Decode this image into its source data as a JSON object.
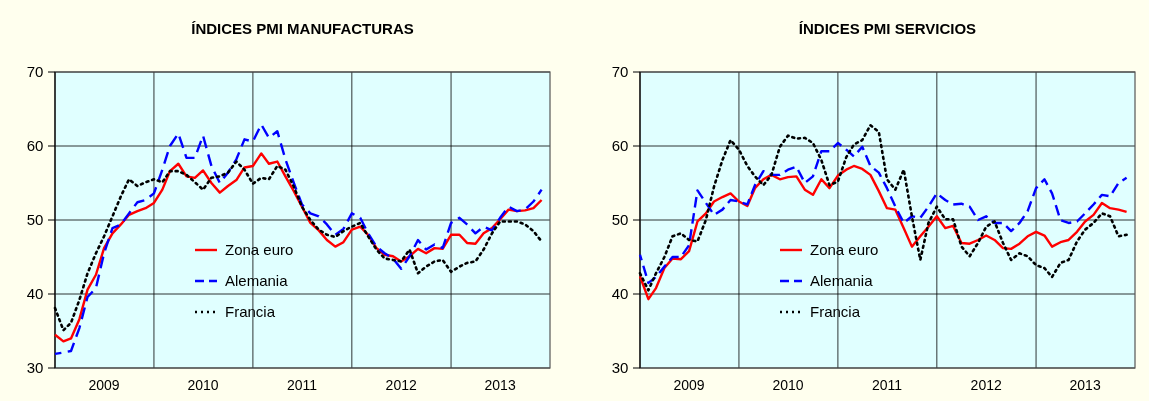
{
  "chart_data": [
    {
      "type": "line",
      "title": "ÍNDICES PMI MANUFACTURAS",
      "x": [
        "2009-01",
        "2009-02",
        "2009-03",
        "2009-04",
        "2009-05",
        "2009-06",
        "2009-07",
        "2009-08",
        "2009-09",
        "2009-10",
        "2009-11",
        "2009-12",
        "2010-01",
        "2010-02",
        "2010-03",
        "2010-04",
        "2010-05",
        "2010-06",
        "2010-07",
        "2010-08",
        "2010-09",
        "2010-10",
        "2010-11",
        "2010-12",
        "2011-01",
        "2011-02",
        "2011-03",
        "2011-04",
        "2011-05",
        "2011-06",
        "2011-07",
        "2011-08",
        "2011-09",
        "2011-10",
        "2011-11",
        "2011-12",
        "2012-01",
        "2012-02",
        "2012-03",
        "2012-04",
        "2012-05",
        "2012-06",
        "2012-07",
        "2012-08",
        "2012-09",
        "2012-10",
        "2012-11",
        "2012-12",
        "2013-01",
        "2013-02",
        "2013-03",
        "2013-04",
        "2013-05",
        "2013-06",
        "2013-07",
        "2013-08",
        "2013-09",
        "2013-10",
        "2013-11",
        "2013-12"
      ],
      "series": [
        {
          "name": "Zona euro",
          "color": "#ff0000",
          "line_style": "solid",
          "values": [
            34.5,
            33.6,
            34,
            36.6,
            40.6,
            42.6,
            46.2,
            48.2,
            49.4,
            50.7,
            51.2,
            51.6,
            52.3,
            54.1,
            56.6,
            57.6,
            55.9,
            55.7,
            56.7,
            55,
            53.7,
            54.6,
            55.4,
            57.1,
            57.3,
            59,
            57.6,
            57.9,
            55.9,
            53.9,
            51.8,
            49.6,
            48.6,
            47.3,
            46.4,
            47,
            48.7,
            49.1,
            48,
            46.2,
            45.3,
            45.1,
            44.4,
            45.1,
            46.1,
            45.5,
            46.2,
            46.1,
            48,
            48,
            46.9,
            46.8,
            48.2,
            48.9,
            50.1,
            51.4,
            51.2,
            51.3,
            51.6,
            52.7
          ]
        },
        {
          "name": "Alemania",
          "color": "#0000ff",
          "line_style": "dashed",
          "values": [
            31.9,
            32.1,
            32.3,
            35.4,
            39.6,
            40.8,
            45.5,
            48.9,
            49.4,
            50.9,
            52.4,
            52.7,
            53.6,
            56.8,
            60,
            61.7,
            58.4,
            58.4,
            61.4,
            57.3,
            55,
            56.4,
            58.2,
            60.9,
            60.6,
            62.9,
            61.1,
            62,
            58.2,
            55,
            52.1,
            50.9,
            50.5,
            49.4,
            48,
            48.8,
            50.9,
            50.3,
            48.2,
            46.4,
            45.5,
            44.8,
            43.4,
            45.1,
            47.3,
            46,
            46.7,
            46.2,
            49.6,
            50.3,
            49.4,
            48.2,
            49.1,
            48.6,
            50.3,
            51.8,
            51.2,
            51.4,
            52.5,
            54.1
          ]
        },
        {
          "name": "Francia",
          "color": "#000000",
          "line_style": "dotted",
          "values": [
            38.1,
            35.1,
            36.1,
            39.2,
            42.8,
            45.5,
            47.8,
            50.5,
            53.2,
            55.5,
            54.6,
            55.1,
            55.5,
            55.1,
            56.6,
            56.6,
            56.1,
            55.1,
            54.1,
            55.7,
            55.9,
            56.4,
            57.9,
            56.8,
            54.9,
            55.7,
            55.5,
            57.3,
            56.8,
            54.5,
            51.8,
            50,
            48.7,
            48,
            47.7,
            48.5,
            49.1,
            49.6,
            47.8,
            46,
            44.8,
            44.6,
            44.4,
            46,
            42.8,
            43.7,
            44.4,
            44.6,
            43,
            43.7,
            44.2,
            44.4,
            46,
            48.2,
            49.8,
            49.8,
            49.8,
            49.4,
            48.5,
            47.1
          ]
        }
      ],
      "xlim": [
        "2009-01",
        "2014-01"
      ],
      "xticks": [
        {
          "value": "2009-07",
          "label": "2009"
        },
        {
          "value": "2010-07",
          "label": "2010"
        },
        {
          "value": "2011-07",
          "label": "2011"
        },
        {
          "value": "2012-07",
          "label": "2012"
        },
        {
          "value": "2013-07",
          "label": "2013"
        },
        {
          "value": "2010-01",
          "label": null
        },
        {
          "value": "2011-01",
          "label": null
        },
        {
          "value": "2012-01",
          "label": null
        },
        {
          "value": "2013-01",
          "label": null
        }
      ],
      "ylim": [
        30,
        70
      ],
      "yticks": [
        30,
        40,
        50,
        60,
        70
      ],
      "grid": true,
      "legend": "center"
    },
    {
      "type": "line",
      "title": "ÍNDICES PMI SERVICIOS",
      "x": [
        "2009-01",
        "2009-02",
        "2009-03",
        "2009-04",
        "2009-05",
        "2009-06",
        "2009-07",
        "2009-08",
        "2009-09",
        "2009-10",
        "2009-11",
        "2009-12",
        "2010-01",
        "2010-02",
        "2010-03",
        "2010-04",
        "2010-05",
        "2010-06",
        "2010-07",
        "2010-08",
        "2010-09",
        "2010-10",
        "2010-11",
        "2010-12",
        "2011-01",
        "2011-02",
        "2011-03",
        "2011-04",
        "2011-05",
        "2011-06",
        "2011-07",
        "2011-08",
        "2011-09",
        "2011-10",
        "2011-11",
        "2011-12",
        "2012-01",
        "2012-02",
        "2012-03",
        "2012-04",
        "2012-05",
        "2012-06",
        "2012-07",
        "2012-08",
        "2012-09",
        "2012-10",
        "2012-11",
        "2012-12",
        "2013-01",
        "2013-02",
        "2013-03",
        "2013-04",
        "2013-05",
        "2013-06",
        "2013-07",
        "2013-08",
        "2013-09",
        "2013-10",
        "2013-11",
        "2013-12"
      ],
      "series": [
        {
          "name": "Zona euro",
          "color": "#ff0000",
          "line_style": "solid",
          "values": [
            42.4,
            39.3,
            40.8,
            43.5,
            44.8,
            44.7,
            45.8,
            49.8,
            50.9,
            52.5,
            53.1,
            53.6,
            52.5,
            51.9,
            54.3,
            55.5,
            56.1,
            55.5,
            55.8,
            55.9,
            54.1,
            53.4,
            55.5,
            54.3,
            56,
            56.8,
            57.3,
            56.9,
            56.1,
            53.9,
            51.6,
            51.4,
            48.9,
            46.4,
            47.8,
            49.1,
            50.5,
            48.9,
            49.2,
            46.9,
            46.8,
            47.3,
            47.9,
            47.3,
            46.2,
            46.1,
            46.8,
            47.8,
            48.4,
            47.9,
            46.4,
            47,
            47.3,
            48.4,
            49.8,
            50.7,
            52.3,
            51.6,
            51.4,
            51.1
          ]
        },
        {
          "name": "Alemania",
          "color": "#0000ff",
          "line_style": "dashed",
          "values": [
            45.3,
            41.5,
            42.3,
            43.7,
            45,
            45,
            46.6,
            54,
            52.3,
            50.7,
            51.4,
            52.7,
            52.5,
            52.1,
            54.7,
            56.6,
            56.1,
            56.1,
            56.8,
            57.2,
            55,
            55.9,
            59.3,
            59.3,
            60.4,
            59.5,
            58.6,
            59.9,
            57.3,
            56.4,
            54.3,
            51.8,
            49.6,
            50.5,
            50.3,
            51.8,
            53.6,
            52.7,
            52.1,
            52.2,
            51.8,
            50,
            50.5,
            49.6,
            49.6,
            48.5,
            49.6,
            51.2,
            54.3,
            55.5,
            53.6,
            50,
            49.6,
            49.8,
            50.9,
            52.1,
            53.4,
            53.2,
            55,
            55.7
          ]
        },
        {
          "name": "Francia",
          "color": "#000000",
          "line_style": "dotted",
          "values": [
            42.8,
            40.5,
            42.8,
            45,
            47.8,
            48.2,
            47.3,
            47.1,
            50,
            54.5,
            58.1,
            60.8,
            59.5,
            57.3,
            55.9,
            54.7,
            56.1,
            59.9,
            61.4,
            61,
            61.1,
            60.4,
            58.1,
            54.7,
            55.2,
            58.5,
            60.2,
            60.8,
            62.8,
            61.9,
            55.5,
            54.1,
            56.8,
            50.5,
            44.6,
            49.6,
            51.8,
            50.1,
            50.1,
            46.4,
            45.1,
            46.9,
            49.1,
            49.8,
            46.9,
            44.6,
            45.5,
            45.1,
            43.9,
            43.5,
            42.3,
            44.2,
            44.6,
            47.1,
            48.7,
            49.6,
            50.9,
            50.5,
            47.8,
            48
          ]
        }
      ],
      "xlim": [
        "2009-01",
        "2014-01"
      ],
      "xticks": [
        {
          "value": "2009-07",
          "label": "2009"
        },
        {
          "value": "2010-07",
          "label": "2010"
        },
        {
          "value": "2011-07",
          "label": "2011"
        },
        {
          "value": "2012-07",
          "label": "2012"
        },
        {
          "value": "2013-07",
          "label": "2013"
        },
        {
          "value": "2010-01",
          "label": null
        },
        {
          "value": "2011-01",
          "label": null
        },
        {
          "value": "2012-01",
          "label": null
        },
        {
          "value": "2013-01",
          "label": null
        }
      ],
      "ylim": [
        30,
        70
      ],
      "yticks": [
        30,
        40,
        50,
        60,
        70
      ],
      "grid": true,
      "legend": "center"
    }
  ]
}
